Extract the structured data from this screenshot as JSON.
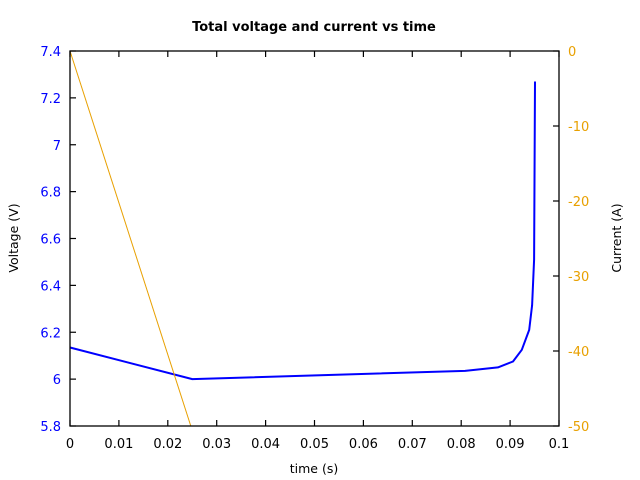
{
  "chart_data": {
    "type": "line",
    "title": "Total voltage and current vs time",
    "xlabel": "time (s)",
    "ylabel": "Voltage (V)",
    "y2label": "Current (A)",
    "xlim": [
      0,
      0.1
    ],
    "ylim": [
      5.8,
      7.4
    ],
    "y2lim": [
      -50,
      0
    ],
    "grid": false,
    "legend": "none",
    "x_ticks": [
      "0",
      "0.01",
      "0.02",
      "0.03",
      "0.04",
      "0.05",
      "0.06",
      "0.07",
      "0.08",
      "0.09",
      "0.1"
    ],
    "y_ticks": [
      "7.4",
      "7.2",
      "7",
      "6.8",
      "6.6",
      "6.4",
      "6.2",
      "6",
      "5.8"
    ],
    "y2_ticks": [
      "0",
      "-10",
      "-20",
      "-30",
      "-40",
      "-50"
    ],
    "colors": {
      "voltage": "#0000ff",
      "current": "#e8a000",
      "axis": "#000000",
      "y_tick_text": "#0000ff",
      "y2_tick_text": "#e8a000"
    },
    "series": [
      {
        "name": "Voltage (V)",
        "axis": "left",
        "color": "#0000ff",
        "x": [
          0,
          0.025,
          0.0808,
          0.0875,
          0.0906,
          0.0924,
          0.0939,
          0.0945,
          0.0949,
          0.0951
        ],
        "y": [
          6.135,
          6.0,
          6.035,
          6.05,
          6.075,
          6.125,
          6.21,
          6.315,
          6.51,
          7.27
        ]
      },
      {
        "name": "Current (A)",
        "axis": "right",
        "color": "#e8a000",
        "x": [
          0,
          0.0247
        ],
        "y": [
          0,
          -50
        ]
      }
    ]
  }
}
